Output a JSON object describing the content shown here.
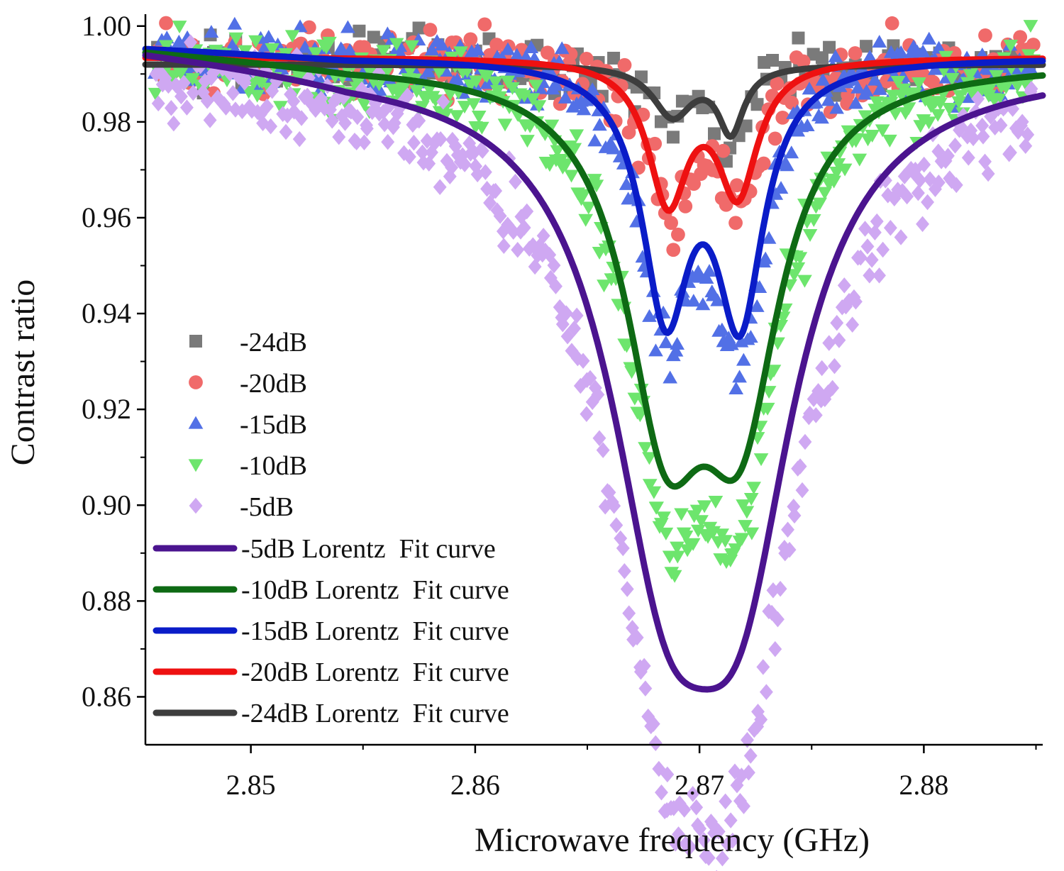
{
  "chart_data": {
    "type": "scatter",
    "title": "",
    "xlabel": "Microwave frequency (GHz)",
    "ylabel": "Contrast ratio",
    "xlim": [
      2.8453,
      2.8853
    ],
    "ylim": [
      0.85,
      1.001
    ],
    "x_ticks": [
      {
        "value": 2.85,
        "label": "2.85"
      },
      {
        "value": 2.86,
        "label": "2.86"
      },
      {
        "value": 2.87,
        "label": "2.87"
      },
      {
        "value": 2.88,
        "label": "2.88"
      }
    ],
    "y_ticks": [
      {
        "value": 1.0,
        "label": "1.00"
      },
      {
        "value": 0.98,
        "label": "0.98"
      },
      {
        "value": 0.96,
        "label": "0.96"
      },
      {
        "value": 0.94,
        "label": "0.94"
      },
      {
        "value": 0.92,
        "label": "0.92"
      },
      {
        "value": 0.9,
        "label": "0.90"
      },
      {
        "value": 0.88,
        "label": "0.88"
      },
      {
        "value": 0.86,
        "label": "0.86"
      }
    ],
    "grid": false,
    "legend_position": "left",
    "scatter_series": [
      {
        "name": "-24dB",
        "marker": "square",
        "color": "#7a7a7a",
        "baseline": 0.9925,
        "dips": [
          {
            "x0": 2.8688,
            "depth": 0.0115,
            "w": 0.0012
          },
          {
            "x0": 2.8713,
            "depth": 0.0155,
            "w": 0.0007
          }
        ],
        "noise": 0.009,
        "n": 150
      },
      {
        "name": "-20dB",
        "marker": "circle",
        "color": "#f06a6a",
        "baseline": 0.993,
        "dips": [
          {
            "x0": 2.8687,
            "depth": 0.031,
            "w": 0.0012
          },
          {
            "x0": 2.8718,
            "depth": 0.029,
            "w": 0.0012
          }
        ],
        "noise": 0.011,
        "n": 260
      },
      {
        "name": "-15dB",
        "marker": "triangle-up",
        "color": "#5270e6",
        "baseline": 0.9935,
        "dips": [
          {
            "x0": 2.8685,
            "depth": 0.053,
            "w": 0.0014
          },
          {
            "x0": 2.8718,
            "depth": 0.054,
            "w": 0.0014
          }
        ],
        "noise": 0.011,
        "n": 320
      },
      {
        "name": "-10dB",
        "marker": "triangle-down",
        "color": "#6de56d",
        "baseline": 0.993,
        "dips": [
          {
            "x0": 2.8685,
            "depth": 0.077,
            "w": 0.0022
          },
          {
            "x0": 2.8718,
            "depth": 0.075,
            "w": 0.0022
          }
        ],
        "noise": 0.012,
        "n": 380
      },
      {
        "name": "-5dB",
        "marker": "diamond",
        "color": "#cfa8f2",
        "baseline": 0.9915,
        "dips": [
          {
            "x0": 2.8685,
            "depth": 0.098,
            "w": 0.0034
          },
          {
            "x0": 2.8718,
            "depth": 0.101,
            "w": 0.0034
          }
        ],
        "noise": 0.013,
        "n": 360
      }
    ],
    "fit_series": [
      {
        "name": "-5dB Lorentz  Fit curve",
        "color": "#4b148f",
        "baseline": 0.9925,
        "left_level": 0.9965,
        "dips": [
          {
            "x0": 2.8685,
            "depth": 0.083,
            "w": 0.0031
          },
          {
            "x0": 2.8718,
            "depth": 0.085,
            "w": 0.0031
          }
        ]
      },
      {
        "name": "-10dB Lorentz  Fit curve",
        "color": "#0e6a14",
        "baseline": 0.9925,
        "left_level": 0.9955,
        "dips": [
          {
            "x0": 2.8685,
            "depth": 0.067,
            "w": 0.0022
          },
          {
            "x0": 2.8718,
            "depth": 0.065,
            "w": 0.0022
          }
        ]
      },
      {
        "name": "-15dB Lorentz  Fit curve",
        "color": "#0a1cc8",
        "baseline": 0.9935,
        "left_level": 0.9955,
        "dips": [
          {
            "x0": 2.8685,
            "depth": 0.0505,
            "w": 0.0013
          },
          {
            "x0": 2.8718,
            "depth": 0.0515,
            "w": 0.0013
          }
        ]
      },
      {
        "name": "-20dB Lorentz  Fit curve",
        "color": "#ee1111",
        "baseline": 0.9935,
        "left_level": 0.9935,
        "dips": [
          {
            "x0": 2.8686,
            "depth": 0.029,
            "w": 0.0011
          },
          {
            "x0": 2.8717,
            "depth": 0.027,
            "w": 0.0011
          }
        ]
      },
      {
        "name": "-24dB Lorentz  Fit curve",
        "color": "#3d3d3d",
        "baseline": 0.992,
        "left_level": 0.992,
        "dips": [
          {
            "x0": 2.8688,
            "depth": 0.0105,
            "w": 0.0011
          },
          {
            "x0": 2.8714,
            "depth": 0.0135,
            "w": 0.0007
          }
        ]
      }
    ]
  }
}
